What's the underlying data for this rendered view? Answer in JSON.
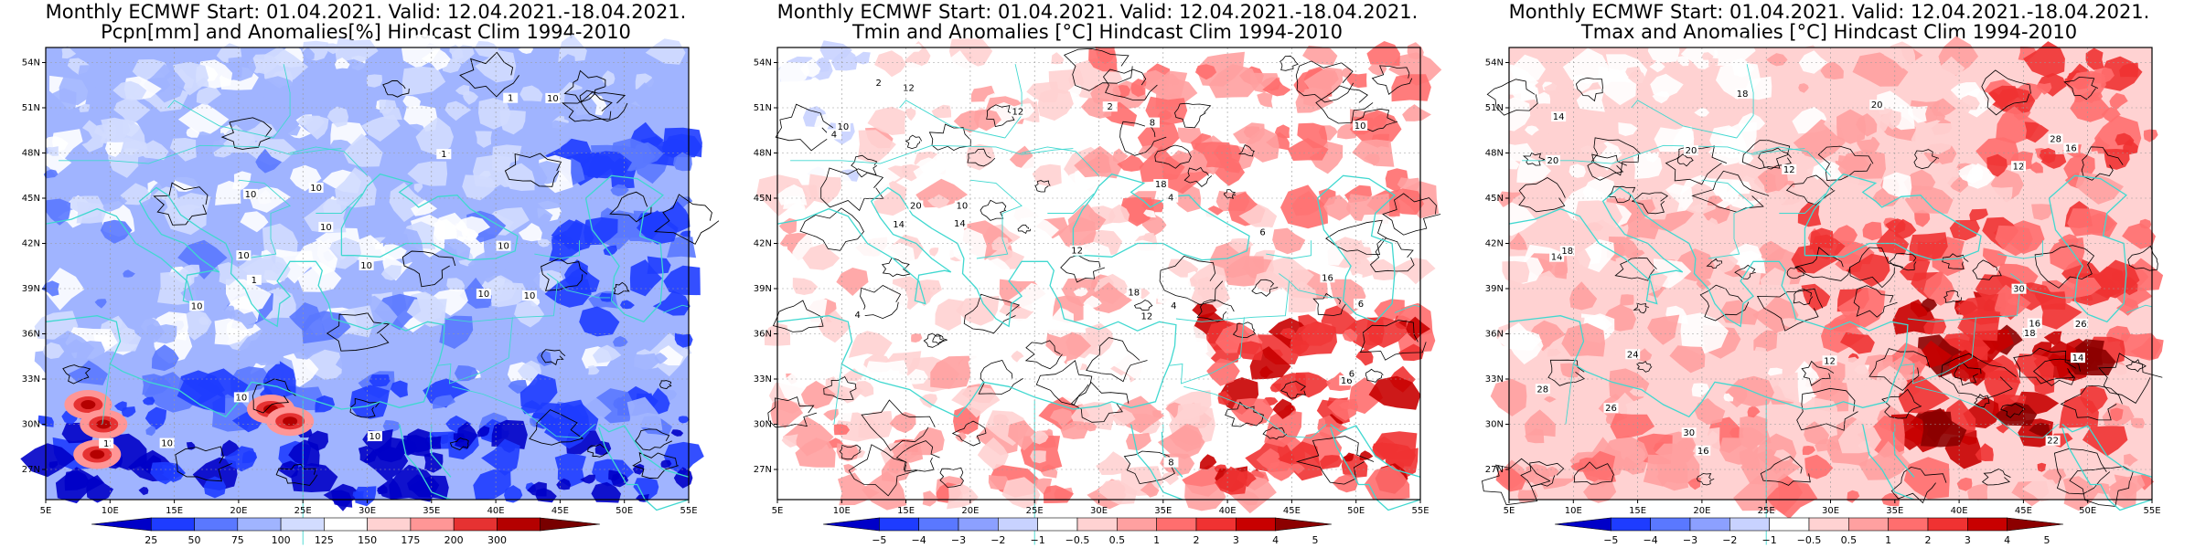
{
  "colors": {
    "coast": "#40d8d0",
    "contour": "#000000",
    "precip_scale": [
      "#0000c8",
      "#1e3cff",
      "#5a78ff",
      "#a0b4ff",
      "#d2dcff",
      "#ffffff",
      "#ffd2d2",
      "#ff9696",
      "#e63232",
      "#b40000",
      "#780000"
    ],
    "temp_scale": [
      "#0000c8",
      "#1e3cff",
      "#5a78ff",
      "#8ca0ff",
      "#c8d2ff",
      "#ffffff",
      "#ffd2d2",
      "#ffa0a0",
      "#ff6e6e",
      "#f03232",
      "#c80000",
      "#8c0000"
    ]
  },
  "axes": {
    "lat_labels": [
      "54N",
      "51N",
      "48N",
      "45N",
      "42N",
      "39N",
      "36N",
      "33N",
      "30N",
      "27N"
    ],
    "lon_labels": [
      "5E",
      "10E",
      "15E",
      "20E",
      "25E",
      "30E",
      "35E",
      "40E",
      "45E",
      "50E",
      "55E"
    ]
  },
  "panels": [
    {
      "title_line1": "Monthly ECMWF Start: 01.04.2021. Valid: 12.04.2021.-18.04.2021.",
      "title_line2": "Pcpn[mm] and Anomalies[%] Hindcast Clim 1994-2010",
      "variable": "precipitation",
      "colorbar_labels": [
        "25",
        "50",
        "75",
        "100",
        "125",
        "150",
        "175",
        "200",
        "300"
      ],
      "contour_labels": [
        "10",
        "10",
        "10",
        "10",
        "10",
        "10",
        "10",
        "10",
        "10",
        "10",
        "10",
        "10",
        "1",
        "1",
        "1",
        "1",
        "10"
      ]
    },
    {
      "title_line1": "Monthly ECMWF Start: 01.04.2021. Valid: 12.04.2021.-18.04.2021.",
      "title_line2": "Tmin and Anomalies [°C] Hindcast Clim 1994-2010",
      "variable": "tmin",
      "colorbar_labels": [
        "−5",
        "−4",
        "−3",
        "−2",
        "−1",
        "−0.5",
        "0.5",
        "1",
        "2",
        "3",
        "4",
        "5"
      ],
      "contour_labels": [
        "4",
        "4",
        "2",
        "4",
        "6",
        "6",
        "8",
        "10",
        "12",
        "10",
        "12",
        "14",
        "16",
        "18",
        "14",
        "16",
        "20",
        "18",
        "12",
        "8",
        "6",
        "2",
        "4",
        "12",
        "10"
      ]
    },
    {
      "title_line1": "Monthly ECMWF Start: 01.04.2021. Valid: 12.04.2021.-18.04.2021.",
      "title_line2": "Tmax and Anomalies [°C] Hindcast Clim 1994-2010",
      "variable": "tmax",
      "colorbar_labels": [
        "−5",
        "−4",
        "−3",
        "−2",
        "−1",
        "−0.5",
        "0.5",
        "1",
        "2",
        "3",
        "4",
        "5"
      ],
      "contour_labels": [
        "12",
        "14",
        "16",
        "12",
        "14",
        "16",
        "18",
        "20",
        "22",
        "24",
        "26",
        "28",
        "30",
        "18",
        "20",
        "26",
        "28",
        "30",
        "12",
        "16",
        "14",
        "18",
        "20"
      ]
    }
  ]
}
